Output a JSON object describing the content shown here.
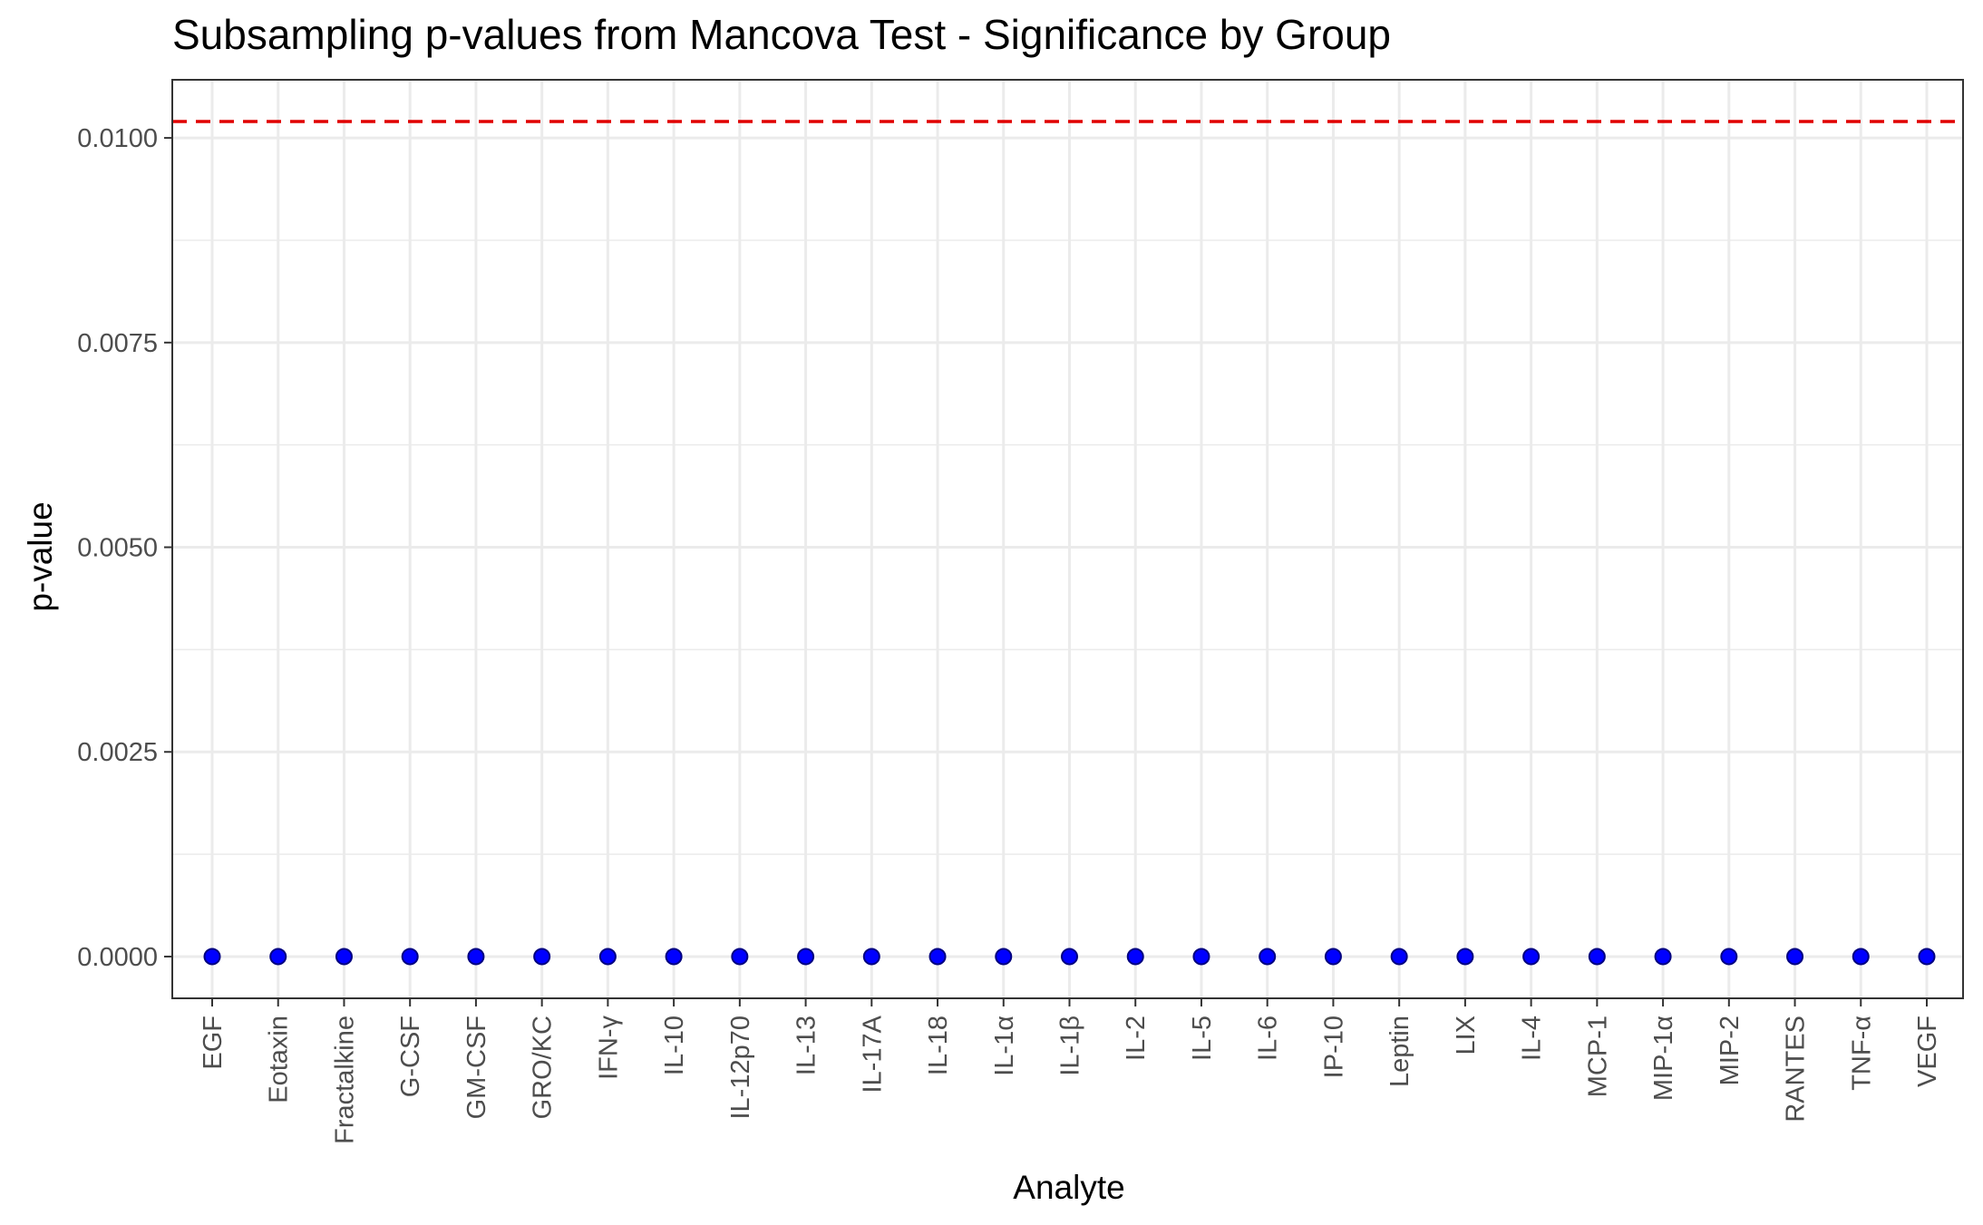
{
  "chart_data": {
    "type": "scatter",
    "title": "Subsampling p-values from Mancova Test - Significance by Group",
    "xlabel": "Analyte",
    "ylabel": "p-value",
    "categories": [
      "EGF",
      "Eotaxin",
      "Fractalkine",
      "G-CSF",
      "GM-CSF",
      "GRO/KC",
      "IFN-γ",
      "IL-10",
      "IL-12p70",
      "IL-13",
      "IL-17A",
      "IL-18",
      "IL-1α",
      "IL-1β",
      "IL-2",
      "IL-5",
      "IL-6",
      "IP-10",
      "Leptin",
      "LIX",
      "IL-4",
      "MCP-1",
      "MIP-1α",
      "MIP-2",
      "RANTES",
      "TNF-α",
      "VEGF"
    ],
    "values": [
      0,
      0,
      0,
      0,
      0,
      0,
      0,
      0,
      0,
      0,
      0,
      0,
      0,
      0,
      0,
      0,
      0,
      0,
      0,
      0,
      0,
      0,
      0,
      0,
      0,
      0,
      0
    ],
    "ylim": [
      -0.00051,
      0.01071
    ],
    "yticks": [
      0.0,
      0.0025,
      0.005,
      0.0075,
      0.01
    ],
    "ytick_labels": [
      "0.0000",
      "0.0025",
      "0.0050",
      "0.0075",
      "0.0100"
    ],
    "reference_line": {
      "y": 0.0102,
      "style": "dashed"
    },
    "grid": true,
    "colors": {
      "points": "#0000ff",
      "point_outline": "#000080",
      "reference_line": "#e00000",
      "grid": "#ebebeb",
      "panel_border": "#333333"
    }
  }
}
